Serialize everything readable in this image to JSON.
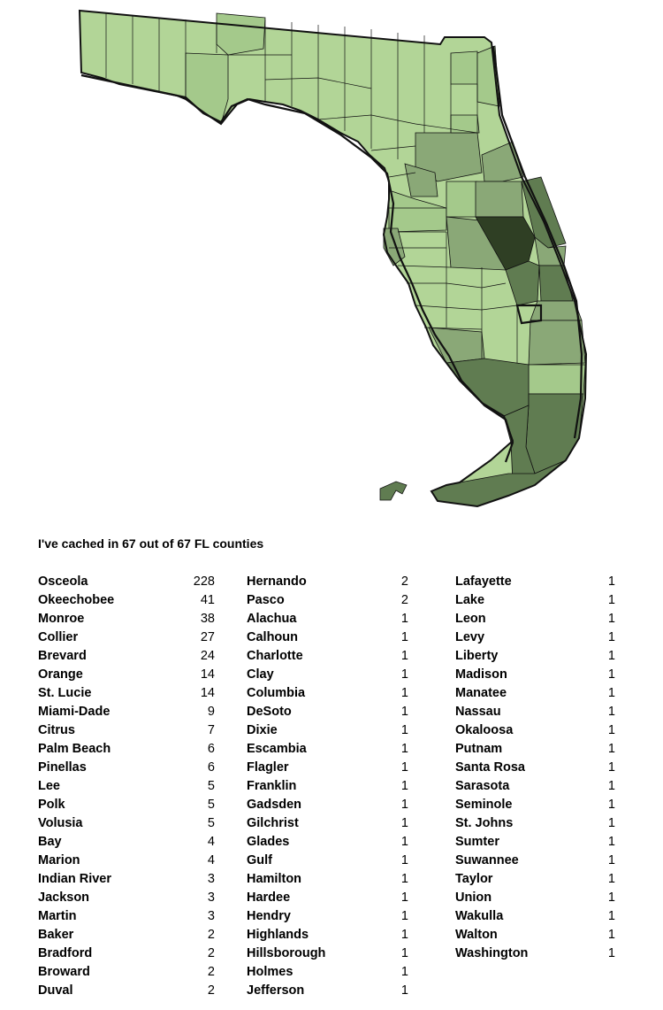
{
  "summary": "I've cached in 67 out of 67 FL counties",
  "colors": {
    "lightest": "#b2d597",
    "light": "#a4c98b",
    "mid": "#8aa877",
    "dark": "#607c51",
    "darkest": "#2f3f24",
    "border": "#111111"
  },
  "counties": [
    {
      "name": "Osceola",
      "count": "228"
    },
    {
      "name": "Okeechobee",
      "count": "41"
    },
    {
      "name": "Monroe",
      "count": "38"
    },
    {
      "name": "Collier",
      "count": "27"
    },
    {
      "name": "Brevard",
      "count": "24"
    },
    {
      "name": "Orange",
      "count": "14"
    },
    {
      "name": "St. Lucie",
      "count": "14"
    },
    {
      "name": "Miami-Dade",
      "count": "9"
    },
    {
      "name": "Citrus",
      "count": "7"
    },
    {
      "name": "Palm Beach",
      "count": "6"
    },
    {
      "name": "Pinellas",
      "count": "6"
    },
    {
      "name": "Lee",
      "count": "5"
    },
    {
      "name": "Polk",
      "count": "5"
    },
    {
      "name": "Volusia",
      "count": "5"
    },
    {
      "name": "Bay",
      "count": "4"
    },
    {
      "name": "Marion",
      "count": "4"
    },
    {
      "name": "Indian River",
      "count": "3"
    },
    {
      "name": "Jackson",
      "count": "3"
    },
    {
      "name": "Martin",
      "count": "3"
    },
    {
      "name": "Baker",
      "count": "2"
    },
    {
      "name": "Bradford",
      "count": "2"
    },
    {
      "name": "Broward",
      "count": "2"
    },
    {
      "name": "Duval",
      "count": "2"
    },
    {
      "name": "Hernando",
      "count": "2"
    },
    {
      "name": "Pasco",
      "count": "2"
    },
    {
      "name": "Alachua",
      "count": "1"
    },
    {
      "name": "Calhoun",
      "count": "1"
    },
    {
      "name": "Charlotte",
      "count": "1"
    },
    {
      "name": "Clay",
      "count": "1"
    },
    {
      "name": "Columbia",
      "count": "1"
    },
    {
      "name": "DeSoto",
      "count": "1"
    },
    {
      "name": "Dixie",
      "count": "1"
    },
    {
      "name": "Escambia",
      "count": "1"
    },
    {
      "name": "Flagler",
      "count": "1"
    },
    {
      "name": "Franklin",
      "count": "1"
    },
    {
      "name": "Gadsden",
      "count": "1"
    },
    {
      "name": "Gilchrist",
      "count": "1"
    },
    {
      "name": "Glades",
      "count": "1"
    },
    {
      "name": "Gulf",
      "count": "1"
    },
    {
      "name": "Hamilton",
      "count": "1"
    },
    {
      "name": "Hardee",
      "count": "1"
    },
    {
      "name": "Hendry",
      "count": "1"
    },
    {
      "name": "Highlands",
      "count": "1"
    },
    {
      "name": "Hillsborough",
      "count": "1"
    },
    {
      "name": "Holmes",
      "count": "1"
    },
    {
      "name": "Jefferson",
      "count": "1"
    },
    {
      "name": "Lafayette",
      "count": "1"
    },
    {
      "name": "Lake",
      "count": "1"
    },
    {
      "name": "Leon",
      "count": "1"
    },
    {
      "name": "Levy",
      "count": "1"
    },
    {
      "name": "Liberty",
      "count": "1"
    },
    {
      "name": "Madison",
      "count": "1"
    },
    {
      "name": "Manatee",
      "count": "1"
    },
    {
      "name": "Nassau",
      "count": "1"
    },
    {
      "name": "Okaloosa",
      "count": "1"
    },
    {
      "name": "Putnam",
      "count": "1"
    },
    {
      "name": "Santa Rosa",
      "count": "1"
    },
    {
      "name": "Sarasota",
      "count": "1"
    },
    {
      "name": "Seminole",
      "count": "1"
    },
    {
      "name": "St. Johns",
      "count": "1"
    },
    {
      "name": "Sumter",
      "count": "1"
    },
    {
      "name": "Suwannee",
      "count": "1"
    },
    {
      "name": "Taylor",
      "count": "1"
    },
    {
      "name": "Union",
      "count": "1"
    },
    {
      "name": "Wakulla",
      "count": "1"
    },
    {
      "name": "Walton",
      "count": "1"
    },
    {
      "name": "Washington",
      "count": "1"
    }
  ]
}
